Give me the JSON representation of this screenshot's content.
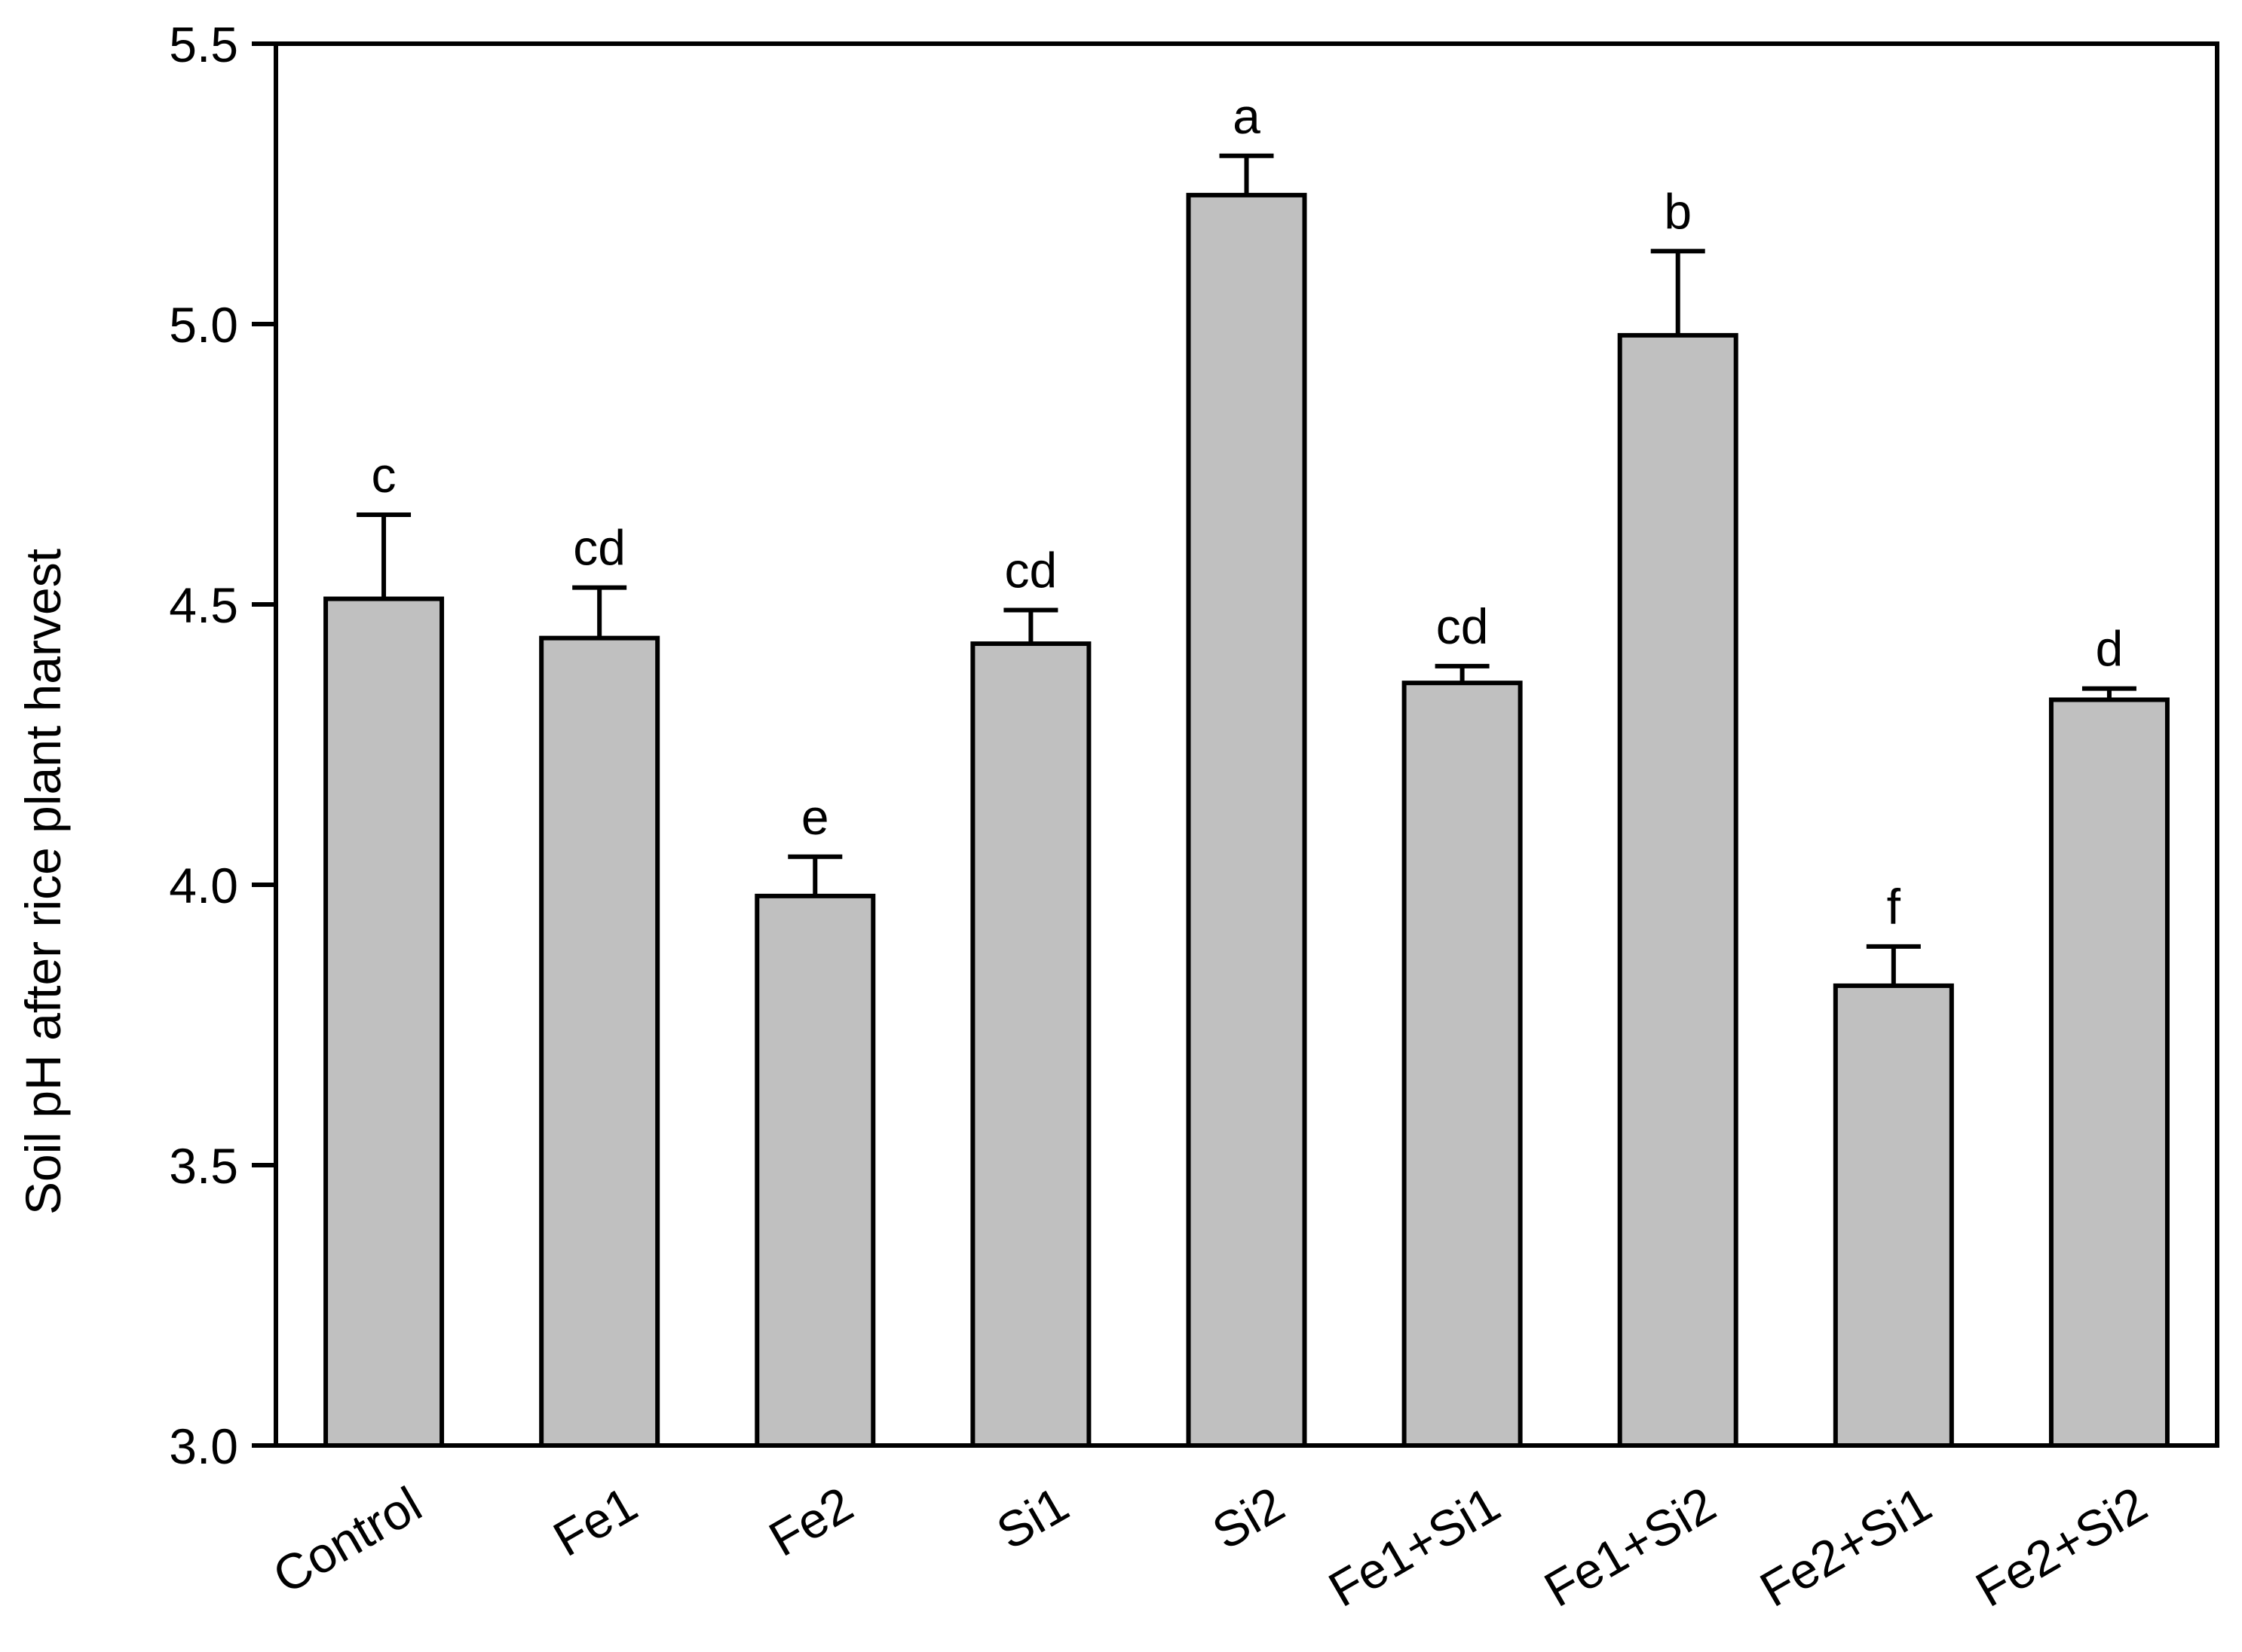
{
  "chart_data": {
    "type": "bar",
    "title": "",
    "xlabel": "",
    "ylabel": "Soil pH after rice plant harvest",
    "ylim": [
      3.0,
      5.5
    ],
    "yticks": [
      "3.0",
      "3.5",
      "4.0",
      "4.5",
      "5.0",
      "5.5"
    ],
    "grid": false,
    "categories": [
      "Control",
      "Fe1",
      "Fe2",
      "Si1",
      "Si2",
      "Fe1+Si1",
      "Fe1+Si2",
      "Fe2+Si1",
      "Fe2+Si2"
    ],
    "values": [
      4.51,
      4.44,
      3.98,
      4.43,
      5.23,
      4.36,
      4.98,
      3.82,
      4.33
    ],
    "errors": [
      0.15,
      0.09,
      0.07,
      0.06,
      0.07,
      0.03,
      0.15,
      0.07,
      0.02
    ],
    "significance": [
      "c",
      "cd",
      "e",
      "cd",
      "a",
      "cd",
      "b",
      "f",
      "d"
    ],
    "colors": {
      "bar_fill": "#c0c0c0",
      "bar_stroke": "#000000",
      "axis": "#000000"
    }
  }
}
